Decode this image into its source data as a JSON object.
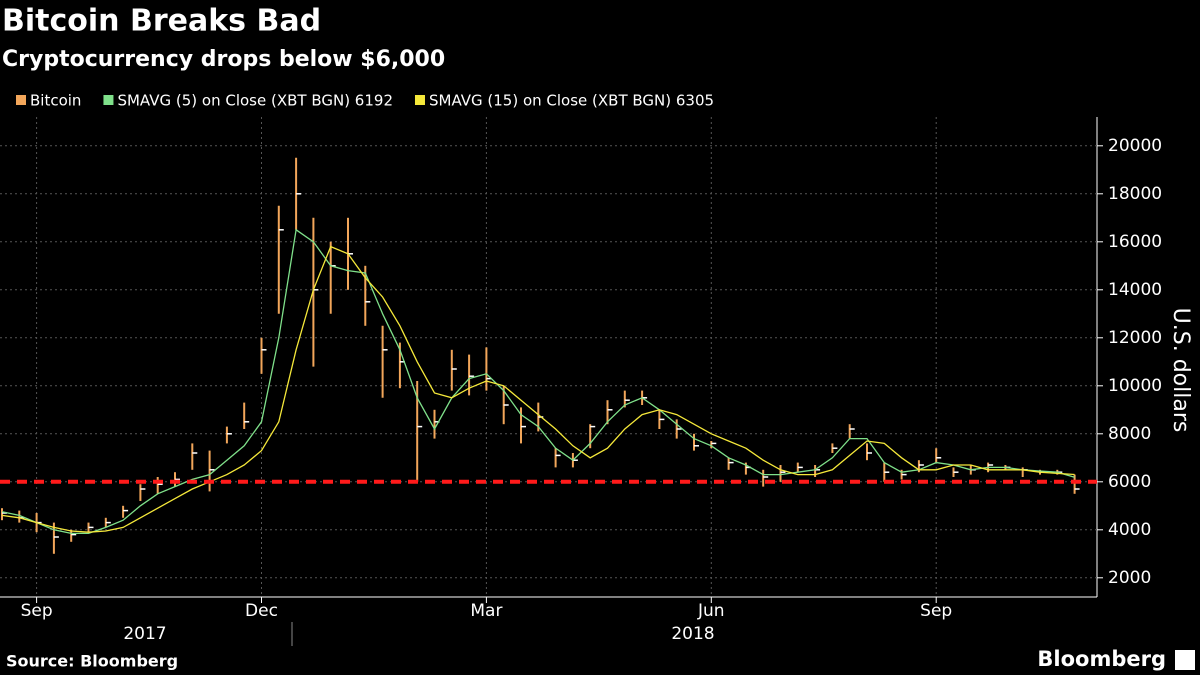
{
  "chart_data": {
    "type": "ohlc",
    "title": "Bitcoin Breaks Bad",
    "subtitle": "Cryptocurrency drops below $6,000",
    "y_label": "U.S. dollars",
    "source": "Source: Bloomberg",
    "brand": "Bloomberg",
    "categories": [
      null,
      null,
      "Sep",
      null,
      null,
      null,
      null,
      null,
      null,
      null,
      null,
      null,
      null,
      null,
      null,
      "Dec",
      null,
      null,
      null,
      null,
      null,
      null,
      null,
      null,
      null,
      null,
      null,
      null,
      "Mar",
      null,
      null,
      null,
      null,
      null,
      null,
      null,
      null,
      null,
      null,
      null,
      null,
      "Jun",
      null,
      null,
      null,
      null,
      null,
      null,
      null,
      null,
      null,
      null,
      null,
      null,
      "Sep",
      null,
      null,
      null,
      null,
      null,
      null,
      null,
      null
    ],
    "year_labels": [
      "2017",
      "2018"
    ],
    "series": [
      {
        "name": "Bitcoin",
        "color": "#f2a65a",
        "close": [
          4700,
          4500,
          4300,
          3700,
          3800,
          4100,
          4300,
          4800,
          5700,
          5900,
          6100,
          7200,
          6500,
          8000,
          8500,
          11500,
          16500,
          18000,
          14000,
          15000,
          15500,
          13500,
          11500,
          11000,
          8300,
          8500,
          10700,
          10400,
          10300,
          9200,
          8300,
          8700,
          7100,
          6900,
          8300,
          9000,
          9400,
          9500,
          8600,
          8200,
          7500,
          7600,
          6800,
          6600,
          6200,
          6400,
          6600,
          6500,
          7400,
          8200,
          7200,
          6400,
          6300,
          6700,
          7000,
          6400,
          6500,
          6700,
          6600,
          6500,
          6400,
          6400,
          5700
        ],
        "high": [
          4900,
          4800,
          4700,
          4300,
          4000,
          4300,
          4500,
          5000,
          5900,
          6200,
          6400,
          7600,
          7300,
          8300,
          9300,
          12000,
          17500,
          19500,
          17000,
          16000,
          17000,
          15000,
          12500,
          11800,
          10200,
          9000,
          11500,
          11300,
          11600,
          10000,
          9100,
          9300,
          7400,
          7200,
          8400,
          9400,
          9800,
          9800,
          9000,
          8600,
          8000,
          7700,
          7000,
          6800,
          6500,
          6700,
          6800,
          6700,
          7600,
          8400,
          7600,
          6800,
          6500,
          6900,
          7400,
          6600,
          6700,
          6800,
          6700,
          6600,
          6500,
          6500,
          6300
        ],
        "low": [
          4400,
          4300,
          3900,
          3000,
          3500,
          3900,
          4100,
          4500,
          5200,
          5500,
          5800,
          6500,
          5600,
          7600,
          8200,
          10500,
          13000,
          16500,
          10800,
          13000,
          14000,
          12500,
          9500,
          9900,
          6000,
          7800,
          9800,
          9600,
          9800,
          8400,
          7600,
          8100,
          6600,
          6600,
          7400,
          8400,
          9100,
          9200,
          8200,
          7800,
          7300,
          7400,
          6500,
          6300,
          5800,
          6000,
          6400,
          6200,
          7200,
          7800,
          6900,
          6000,
          6100,
          6400,
          6800,
          6200,
          6300,
          6400,
          6500,
          6200,
          6300,
          6300,
          5500
        ]
      },
      {
        "name": "SMAVG (5)  on Close (XBT BGN) 6192",
        "color": "#7fe08a",
        "values": [
          4750,
          4600,
          4300,
          4000,
          3850,
          3850,
          4100,
          4400,
          5000,
          5500,
          5800,
          6100,
          6300,
          6900,
          7500,
          8500,
          12000,
          16500,
          16000,
          15000,
          14800,
          14700,
          13000,
          11500,
          9500,
          8200,
          9500,
          10300,
          10500,
          9800,
          8800,
          8300,
          7400,
          6900,
          7600,
          8500,
          9200,
          9500,
          9000,
          8400,
          7800,
          7500,
          7000,
          6700,
          6300,
          6300,
          6400,
          6500,
          7000,
          7800,
          7800,
          6800,
          6400,
          6500,
          6800,
          6700,
          6500,
          6600,
          6600,
          6500,
          6450,
          6400,
          6192
        ]
      },
      {
        "name": "SMAVG (15)  on Close (XBT BGN) 6305",
        "color": "#f5e83a",
        "values": [
          4600,
          4500,
          4300,
          4100,
          3950,
          3900,
          3950,
          4100,
          4500,
          4900,
          5300,
          5700,
          6000,
          6300,
          6700,
          7300,
          8500,
          11500,
          14000,
          15800,
          15500,
          14500,
          13700,
          12500,
          11000,
          9700,
          9500,
          9900,
          10200,
          10000,
          9400,
          8800,
          8200,
          7500,
          7000,
          7400,
          8200,
          8800,
          9000,
          8800,
          8400,
          8000,
          7700,
          7400,
          6900,
          6500,
          6300,
          6300,
          6500,
          7100,
          7700,
          7600,
          7000,
          6500,
          6500,
          6700,
          6700,
          6500,
          6500,
          6500,
          6400,
          6350,
          6305
        ]
      }
    ],
    "reference_line": 6000,
    "reference_color": "#ff1a1a",
    "ylim": [
      1200,
      21200
    ],
    "yticks": [
      2000,
      4000,
      6000,
      8000,
      10000,
      12000,
      14000,
      16000,
      18000,
      20000
    ],
    "grid": true
  }
}
